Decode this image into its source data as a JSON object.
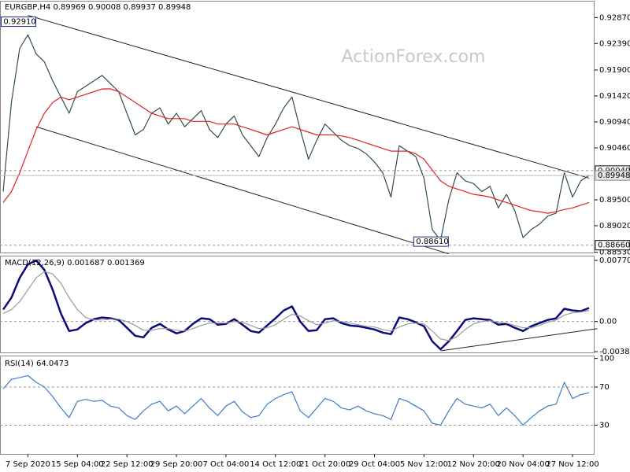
{
  "chart_data": [
    {
      "type": "line",
      "title": "EURGBP,H4 0.89969 0.90008 0.89937 0.89948",
      "watermark": "ActionForex.com",
      "ylim": [
        0.8851,
        0.9318
      ],
      "yticks": [
        {
          "value": 0.9287,
          "label": "0.92870"
        },
        {
          "value": 0.9239,
          "label": "0.92390"
        },
        {
          "value": 0.919,
          "label": "0.91900"
        },
        {
          "value": 0.9142,
          "label": "0.91420"
        },
        {
          "value": 0.9094,
          "label": "0.90940"
        },
        {
          "value": 0.9046,
          "label": "0.90460"
        },
        {
          "value": 0.895,
          "label": "0.89500"
        },
        {
          "value": 0.8902,
          "label": "0.89020"
        },
        {
          "value": 0.8853,
          "label": "0.88530"
        }
      ],
      "levels": [
        {
          "value": 0.9004,
          "label": "0.90040"
        },
        {
          "value": 0.8866,
          "label": "0.88660"
        }
      ],
      "current": {
        "value": 0.89948,
        "label": "0.89948"
      },
      "annotations": [
        {
          "x": 3,
          "value": 0.9291,
          "label": "0.92910"
        },
        {
          "x": 53,
          "value": 0.8861,
          "label": "0.88610"
        }
      ],
      "trendlines": [
        {
          "x": [
            3,
            71
          ],
          "y": [
            0.9291,
            0.899
          ]
        },
        {
          "x": [
            4,
            54
          ],
          "y": [
            0.9085,
            0.885
          ]
        }
      ],
      "series": [
        {
          "color": "#2f4f4f",
          "values": [
            0.8965,
            0.913,
            0.923,
            0.9255,
            0.922,
            0.9205,
            0.917,
            0.914,
            0.911,
            0.915,
            0.916,
            0.917,
            0.918,
            0.9165,
            0.915,
            0.911,
            0.907,
            0.908,
            0.911,
            0.912,
            0.909,
            0.911,
            0.9085,
            0.91,
            0.9115,
            0.908,
            0.9065,
            0.909,
            0.9105,
            0.907,
            0.905,
            0.903,
            0.9065,
            0.909,
            0.912,
            0.914,
            0.908,
            0.9025,
            0.906,
            0.909,
            0.9075,
            0.906,
            0.905,
            0.9045,
            0.9035,
            0.902,
            0.9,
            0.8955,
            0.905,
            0.904,
            0.903,
            0.899,
            0.8895,
            0.8875,
            0.895,
            0.9,
            0.8985,
            0.898,
            0.8965,
            0.8975,
            0.8935,
            0.896,
            0.893,
            0.888,
            0.8895,
            0.8905,
            0.892,
            0.8925,
            0.9,
            0.8955,
            0.8985,
            0.8995
          ]
        },
        {
          "color": "#e0202a",
          "values": [
            0.8945,
            0.8965,
            0.9,
            0.904,
            0.908,
            0.911,
            0.913,
            0.914,
            0.9135,
            0.914,
            0.9145,
            0.915,
            0.9155,
            0.9155,
            0.915,
            0.914,
            0.913,
            0.912,
            0.911,
            0.9105,
            0.91,
            0.91,
            0.91,
            0.9095,
            0.9095,
            0.9095,
            0.909,
            0.909,
            0.909,
            0.9085,
            0.908,
            0.9075,
            0.907,
            0.9075,
            0.908,
            0.9085,
            0.908,
            0.9075,
            0.907,
            0.907,
            0.907,
            0.9068,
            0.9065,
            0.906,
            0.9055,
            0.905,
            0.9045,
            0.904,
            0.904,
            0.904,
            0.9035,
            0.9025,
            0.9005,
            0.8985,
            0.8975,
            0.897,
            0.8965,
            0.896,
            0.8958,
            0.8955,
            0.895,
            0.8945,
            0.894,
            0.8935,
            0.893,
            0.8928,
            0.8925,
            0.8928,
            0.8932,
            0.8935,
            0.894,
            0.8945
          ]
        }
      ]
    },
    {
      "type": "line",
      "title": "MACD(12,26,9) 0.001687 0.001369",
      "ylim": [
        -0.004,
        0.0083
      ],
      "yticks": [
        {
          "value": 0.007704,
          "label": "0.007704"
        },
        {
          "value": 0,
          "label": "0.00"
        },
        {
          "value": -0.003804,
          "label": "-0.003804"
        }
      ],
      "levels": [
        0
      ],
      "trendlines": [
        {
          "x": [
            53,
            72
          ],
          "y": [
            -0.0037,
            -0.0009
          ]
        }
      ],
      "series": [
        {
          "color": "#0a0a7a",
          "values": [
            0.0015,
            0.003,
            0.0055,
            0.0072,
            0.0077,
            0.0065,
            0.004,
            0.001,
            -0.0012,
            -0.001,
            -0.0002,
            0.0003,
            0.0005,
            0.0004,
            0.0002,
            -0.0008,
            -0.0018,
            -0.002,
            -0.0008,
            -0.0003,
            -0.001,
            -0.0015,
            -0.0012,
            -0.0003,
            0.0004,
            0.0003,
            -0.0004,
            -0.0003,
            0.0003,
            -0.0004,
            -0.0012,
            -0.0014,
            -0.0005,
            0.0004,
            0.0014,
            0.0019,
            0,
            -0.0012,
            -0.0011,
            0.0003,
            0.0004,
            -0.0002,
            -0.0005,
            -0.0006,
            -0.0008,
            -0.001,
            -0.0014,
            -0.0016,
            0.0005,
            0.0003,
            -0.0001,
            -0.0006,
            -0.0025,
            -0.0035,
            -0.0025,
            -0.0012,
            0.0002,
            0.0004,
            0.0003,
            0.0002,
            -0.0004,
            -0.0003,
            -0.0008,
            -0.0012,
            -0.0006,
            -0.0002,
            0.0002,
            0.0004,
            0.0016,
            0.0014,
            0.0013,
            0.0017
          ]
        },
        {
          "color": "#9a9a9a",
          "values": [
            0.001,
            0.0015,
            0.0025,
            0.004,
            0.0055,
            0.0063,
            0.006,
            0.0048,
            0.003,
            0.0015,
            0.0005,
            0.0002,
            0.0002,
            0.0003,
            0.0003,
            0,
            -0.0005,
            -0.0011,
            -0.0011,
            -0.0009,
            -0.0009,
            -0.0011,
            -0.0012,
            -0.0009,
            -0.0005,
            -0.0002,
            -0.0002,
            -0.0002,
            0,
            -0.0001,
            -0.0005,
            -0.0009,
            -0.0008,
            -0.0004,
            0.0003,
            0.0009,
            0.0007,
            0.0001,
            -0.0004,
            -0.0002,
            0.0001,
            0,
            -0.0002,
            -0.0004,
            -0.0006,
            -0.0007,
            -0.001,
            -0.0012,
            -0.0007,
            -0.0003,
            -0.0002,
            -0.0003,
            -0.0012,
            -0.0022,
            -0.0024,
            -0.0019,
            -0.001,
            -0.0003,
            0,
            0.0001,
            -0.0001,
            -0.0002,
            -0.0005,
            -0.0008,
            -0.0008,
            -0.0005,
            -0.0001,
            0.0002,
            0.0008,
            0.0011,
            0.0012,
            0.0014
          ]
        }
      ]
    },
    {
      "type": "line",
      "title": "RSI(14) 64.0473",
      "ylim": [
        -1,
        103
      ],
      "yticks": [
        100,
        70,
        30
      ],
      "levels": [
        70,
        30
      ],
      "categories": [
        null,
        null,
        null,
        "7 Sep 2020",
        null,
        null,
        null,
        null,
        null,
        "15 Sep 04:00",
        null,
        null,
        null,
        null,
        null,
        "22 Sep 12:00",
        null,
        null,
        null,
        null,
        null,
        "29 Sep 20:00",
        null,
        null,
        null,
        null,
        null,
        "7 Oct 04:00",
        null,
        null,
        null,
        null,
        null,
        "14 Oct 12:00",
        null,
        null,
        null,
        null,
        null,
        "21 Oct 20:00",
        null,
        null,
        null,
        null,
        null,
        "29 Oct 04:00",
        null,
        null,
        null,
        null,
        null,
        "5 Nov 12:00",
        null,
        null,
        null,
        null,
        null,
        "12 Nov 20:00",
        null,
        null,
        null,
        null,
        null,
        "20 Nov 04:00",
        null,
        null,
        null,
        null,
        null,
        "27 Nov 12:00",
        null,
        null
      ],
      "series": [
        {
          "color": "#3f7cc4",
          "values": [
            68,
            78,
            80,
            82,
            75,
            70,
            60,
            48,
            38,
            55,
            57,
            55,
            56,
            50,
            48,
            40,
            36,
            45,
            52,
            55,
            45,
            50,
            42,
            50,
            58,
            48,
            40,
            50,
            55,
            44,
            38,
            40,
            52,
            58,
            62,
            65,
            45,
            38,
            48,
            58,
            55,
            48,
            46,
            50,
            45,
            42,
            40,
            36,
            58,
            55,
            50,
            45,
            32,
            30,
            45,
            58,
            52,
            50,
            48,
            52,
            40,
            48,
            40,
            30,
            38,
            45,
            50,
            52,
            75,
            58,
            62,
            64
          ]
        }
      ]
    }
  ]
}
